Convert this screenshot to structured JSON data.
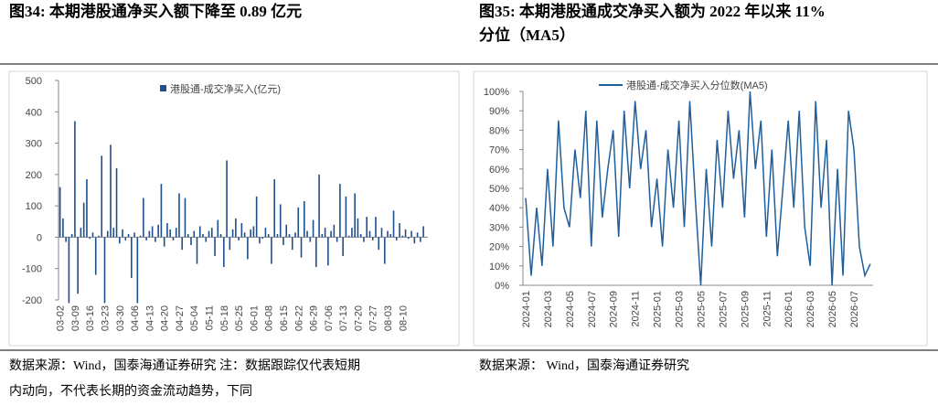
{
  "chart_data": [
    {
      "type": "bar",
      "title": [
        "图34:  本期港股通净买入额下降至 0.89 亿元"
      ],
      "note": [
        "数据来源：Wind，国泰海通证券研究  注：数据跟踪仅代表短期",
        "内动向，不代表长期的资金流动趋势，下同"
      ],
      "categories": [
        "03-02",
        null,
        null,
        null,
        null,
        "03-09",
        null,
        null,
        null,
        null,
        "03-16",
        null,
        null,
        null,
        null,
        "03-23",
        null,
        null,
        null,
        null,
        "03-30",
        null,
        null,
        null,
        null,
        "04-06",
        null,
        null,
        null,
        null,
        "04-13",
        null,
        null,
        null,
        null,
        "04-20",
        null,
        null,
        null,
        null,
        "04-27",
        null,
        null,
        null,
        null,
        "05-04",
        null,
        null,
        null,
        null,
        "05-11",
        null,
        null,
        null,
        null,
        "05-18",
        null,
        null,
        null,
        null,
        "05-25",
        null,
        null,
        null,
        null,
        "06-01",
        null,
        null,
        null,
        null,
        "06-08",
        null,
        null,
        null,
        null,
        "06-15",
        null,
        null,
        null,
        null,
        "06-22",
        null,
        null,
        null,
        null,
        "06-29",
        null,
        null,
        null,
        null,
        "07-06",
        null,
        null,
        null,
        null,
        "07-13",
        null,
        null,
        null,
        null,
        "07-20",
        null,
        null,
        null,
        null,
        "07-27",
        null,
        null,
        null,
        null,
        "08-03",
        null,
        null,
        null,
        null,
        "08-10",
        null,
        null,
        null,
        null,
        null,
        null,
        null,
        null
      ],
      "series": [
        {
          "name": "港股通-成交净买入(亿元)",
          "color": "#1f4e8c",
          "values": [
            160,
            60,
            -15,
            -210,
            10,
            370,
            -180,
            30,
            110,
            185,
            -5,
            15,
            -120,
            5,
            260,
            -210,
            20,
            295,
            30,
            220,
            -20,
            25,
            -10,
            10,
            -130,
            15,
            -210,
            5,
            125,
            -10,
            20,
            35,
            -15,
            40,
            170,
            -30,
            45,
            25,
            -10,
            30,
            140,
            -40,
            125,
            10,
            -25,
            20,
            -85,
            35,
            10,
            -15,
            20,
            30,
            -60,
            55,
            10,
            -95,
            245,
            -40,
            25,
            60,
            -10,
            45,
            15,
            -70,
            25,
            35,
            130,
            -20,
            -5,
            30,
            10,
            -85,
            185,
            10,
            105,
            -25,
            40,
            10,
            -40,
            15,
            95,
            -65,
            115,
            20,
            -15,
            55,
            -95,
            200,
            10,
            30,
            -90,
            20,
            40,
            -15,
            170,
            -60,
            130,
            5,
            30,
            140,
            60,
            10,
            -15,
            65,
            20,
            -10,
            65,
            -40,
            30,
            -85,
            20,
            10,
            85,
            -10,
            45,
            5,
            25,
            -5,
            20,
            -20,
            15,
            -15,
            35,
            0.89
          ]
        }
      ],
      "ylim": [
        -200,
        500
      ],
      "yticks": [
        -200,
        -100,
        0,
        100,
        200,
        300,
        400,
        500
      ],
      "legend": "top"
    },
    {
      "type": "line",
      "title": [
        "图35:  本期港股通成交净买入额为 2022 年以来 11%",
        "分位（MA5）"
      ],
      "note": [
        "数据来源： Wind，国泰海通证券研究"
      ],
      "categories": [
        "2024-01",
        null,
        null,
        null,
        "2024-03",
        null,
        null,
        null,
        "2024-05",
        null,
        null,
        null,
        "2024-07",
        null,
        null,
        null,
        "2024-09",
        null,
        null,
        null,
        "2024-11",
        null,
        null,
        null,
        "2025-01",
        null,
        null,
        null,
        "2025-03",
        null,
        null,
        null,
        "2025-05",
        null,
        null,
        null,
        "2025-07",
        null,
        null,
        null,
        "2025-09",
        null,
        null,
        null,
        "2025-11",
        null,
        null,
        null,
        "2026-01",
        null,
        null,
        null,
        "2026-03",
        null,
        null,
        null,
        "2026-05",
        null,
        null,
        null,
        "2026-07",
        null,
        null,
        null
      ],
      "series": [
        {
          "name": "港股通-成交净买入分位数(MA5)",
          "color": "#1f5f9e",
          "values": [
            45,
            5,
            40,
            10,
            60,
            20,
            85,
            40,
            30,
            70,
            45,
            90,
            20,
            85,
            35,
            60,
            80,
            25,
            90,
            50,
            95,
            60,
            80,
            30,
            55,
            20,
            70,
            40,
            85,
            30,
            95,
            45,
            0,
            60,
            20,
            75,
            40,
            90,
            55,
            80,
            35,
            100,
            60,
            85,
            25,
            70,
            15,
            50,
            85,
            40,
            90,
            30,
            10,
            95,
            40,
            75,
            0,
            60,
            5,
            90,
            70,
            20,
            5,
            11
          ]
        }
      ],
      "ylim": [
        0,
        100
      ],
      "yticks": [
        {
          "value": 0,
          "label": "0%"
        },
        {
          "value": 10,
          "label": "10%"
        },
        {
          "value": 20,
          "label": "20%"
        },
        {
          "value": 30,
          "label": "30%"
        },
        {
          "value": 40,
          "label": "40%"
        },
        {
          "value": 50,
          "label": "50%"
        },
        {
          "value": 60,
          "label": "60%"
        },
        {
          "value": 70,
          "label": "70%"
        },
        {
          "value": 80,
          "label": "80%"
        },
        {
          "value": 90,
          "label": "90%"
        },
        {
          "value": 100,
          "label": "100%"
        }
      ],
      "legend": "top"
    }
  ]
}
